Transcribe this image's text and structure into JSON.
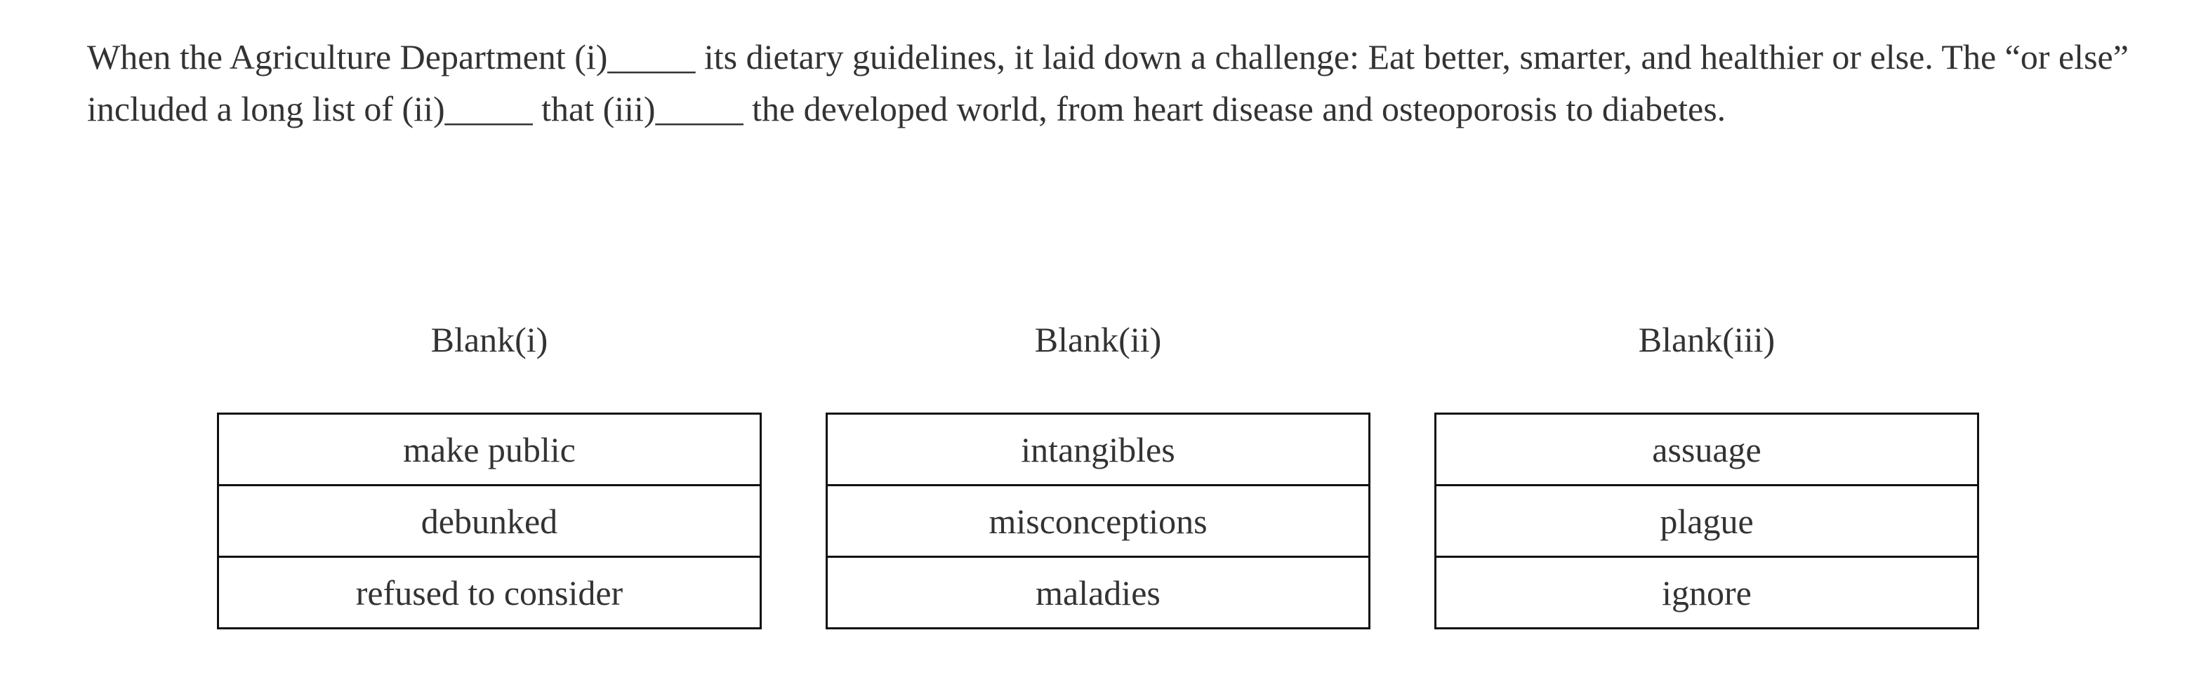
{
  "passage": "When the Agriculture Department (i)_____ its dietary guidelines, it laid down a challenge: Eat better, smarter, and healthier or else. The “or else” included a long list of (ii)_____ that (iii)_____ the developed world, from heart disease and osteoporosis to diabetes.",
  "blanks": [
    {
      "label": "Blank(i)",
      "options": [
        "make public",
        "debunked",
        "refused to consider"
      ]
    },
    {
      "label": "Blank(ii)",
      "options": [
        "intangibles",
        "misconceptions",
        "maladies"
      ]
    },
    {
      "label": "Blank(iii)",
      "options": [
        "assuage",
        "plague",
        "ignore"
      ]
    }
  ]
}
